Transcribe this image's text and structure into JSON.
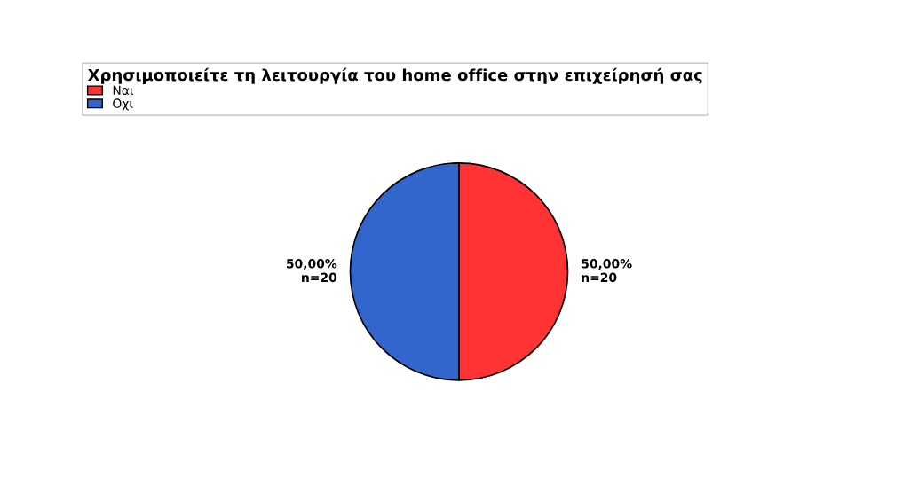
{
  "chart_data": {
    "type": "pie",
    "legend_title": "Χρησιμοποιείτε τη λειτουργία του home office στην επιχείρησή σας",
    "categories": [
      "Ναι",
      "Οχι"
    ],
    "values": [
      50,
      50
    ],
    "colors": [
      "#ff3333",
      "#3366cc"
    ],
    "value_labels": [
      "50,00%\nn=20",
      "50,00%\nn=20"
    ],
    "legend": "top"
  }
}
